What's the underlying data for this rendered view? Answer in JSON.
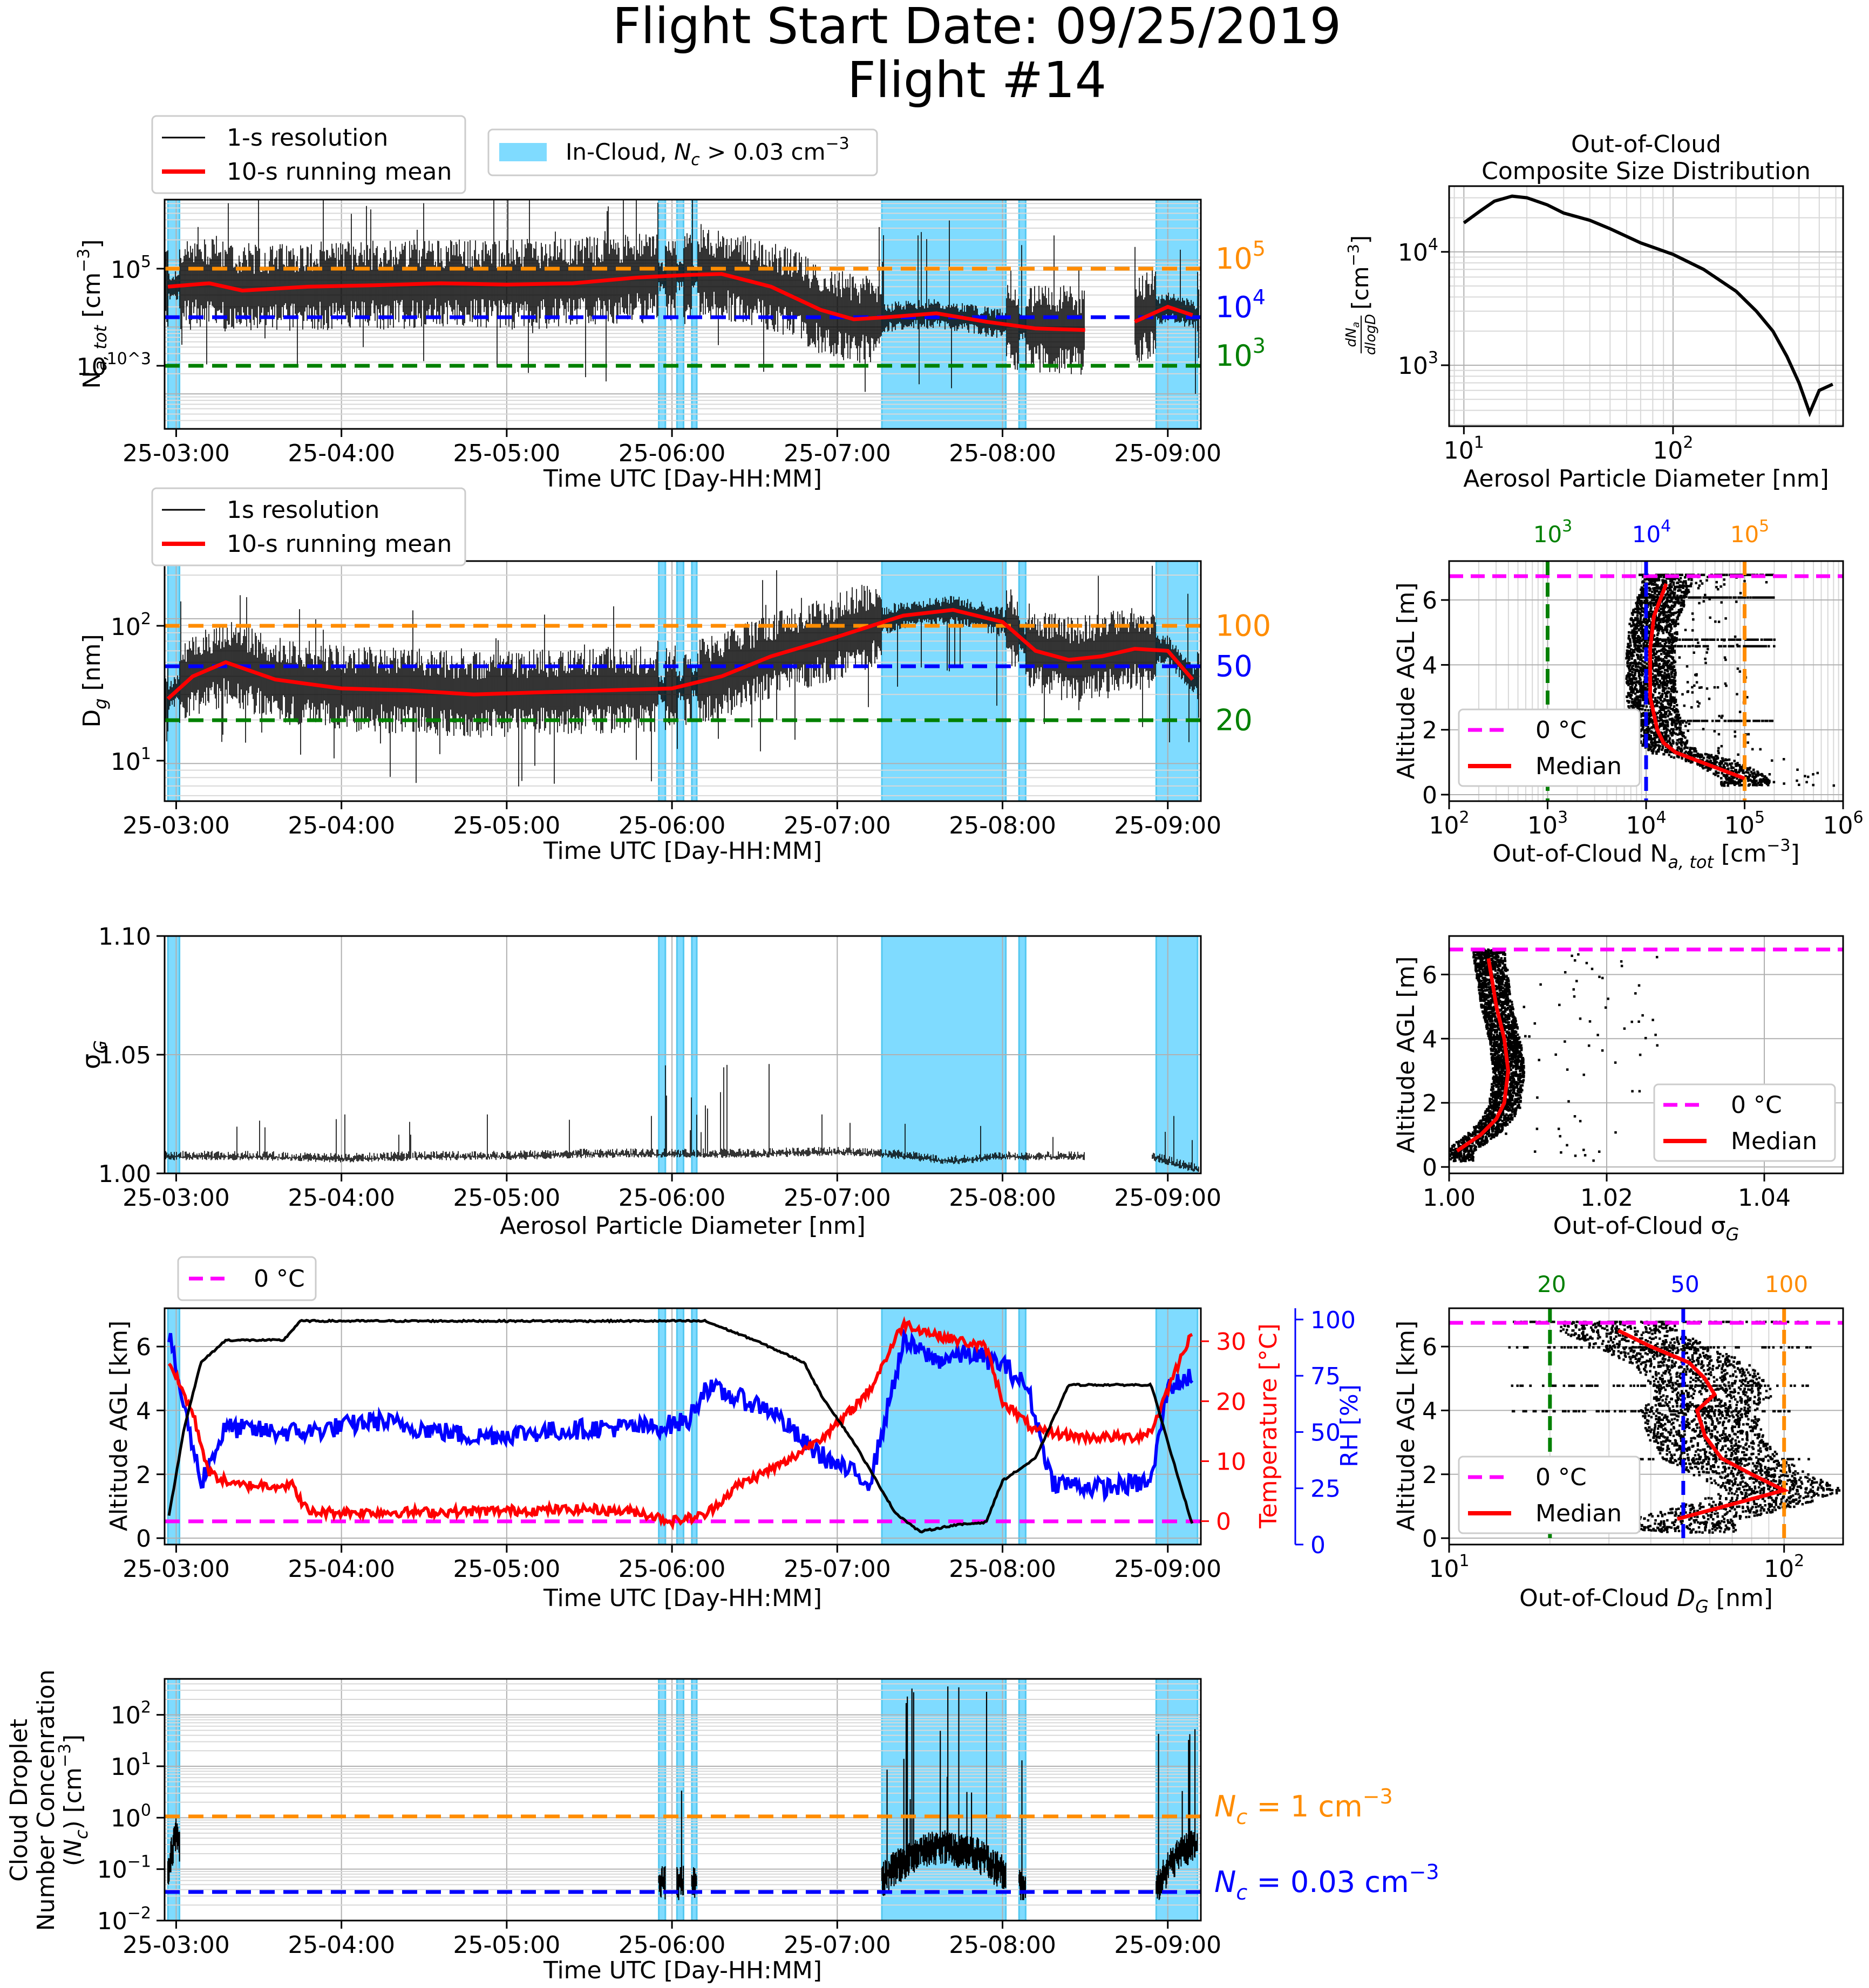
{
  "title": {
    "line1": "Flight Start Date: 09/25/2019",
    "line2": "Flight #14"
  },
  "colors": {
    "cloud": "#7fdbff",
    "cloud_line": "#55c8f0",
    "red": "#ff0000",
    "blue": "#0000ff",
    "green": "#008000",
    "orange": "#ff8c00",
    "magenta": "#ff00ff",
    "black": "#000000"
  },
  "time_ticks": [
    "25-03:00",
    "25-04:00",
    "25-05:00",
    "25-06:00",
    "25-07:00",
    "25-08:00",
    "25-09:00"
  ],
  "cloud_periods": [
    [
      2.95,
      3.02
    ],
    [
      5.92,
      5.96
    ],
    [
      6.03,
      6.07
    ],
    [
      6.12,
      6.15
    ],
    [
      7.27,
      8.02
    ],
    [
      8.1,
      8.14
    ],
    [
      8.93,
      9.18
    ]
  ],
  "panels": {
    "na": {
      "ylabel": "N_a,tot [cm^-3]",
      "xlabel": "Time UTC [Day-HH:MM]",
      "yticks": [
        "10^3",
        "10^5"
      ],
      "legend_left": [
        "1-s resolution",
        "10-s running mean"
      ],
      "legend_cloud": "In-Cloud, N_c > 0.03 cm^-3",
      "ref_labels": [
        "10^5",
        "10^4",
        "10^3"
      ]
    },
    "dg": {
      "ylabel": "D_g [nm]",
      "xlabel": "Time UTC [Day-HH:MM]",
      "yticks": [
        "10^1",
        "10^2"
      ],
      "legend": [
        "1s resolution",
        "10-s running mean"
      ],
      "ref_labels": [
        "100",
        "50",
        "20"
      ]
    },
    "sg": {
      "ylabel": "σ_G",
      "xlabel": "Aerosol Particle Diameter [nm]",
      "yticks": [
        "1.00",
        "1.05",
        "1.10"
      ]
    },
    "alt": {
      "ylabel": "Altitude AGL [km]",
      "ylabel_temp": "Temperature [°C]",
      "ylabel_rh": "RH [%]",
      "xlabel": "Time UTC [Day-HH:MM]",
      "yticks": [
        "0",
        "2",
        "4",
        "6"
      ],
      "temp_ticks": [
        "0",
        "10",
        "20",
        "30"
      ],
      "rh_ticks": [
        "0",
        "25",
        "50",
        "75",
        "100"
      ],
      "legend": "0 °C"
    },
    "nc": {
      "ylabel_lines": [
        "Cloud Droplet",
        "Number Concenration",
        "(N_c) [cm^-3]"
      ],
      "xlabel": "Time UTC [Day-HH:MM]",
      "yticks": [
        "10^-2",
        "10^-1",
        "10^0",
        "10^1",
        "10^2"
      ],
      "ref_labels": [
        "N_c = 1 cm^-3",
        "N_c = 0.03 cm^-3"
      ]
    },
    "psd": {
      "title_lines": [
        "Out-of-Cloud",
        "Composite Size Distribution"
      ],
      "xlabel": "Aerosol Particle Diameter [nm]",
      "ylabel": "dN_a/dlogD [cm^-3]",
      "xticks": [
        "10^1",
        "10^2"
      ],
      "yticks": [
        "10^3",
        "10^4"
      ]
    },
    "prof_na": {
      "ylabel": "Altitude AGL [m]",
      "xlabel": "Out-of-Cloud N_a,tot [cm^-3]",
      "xticks": [
        "10^2",
        "10^3",
        "10^4",
        "10^5",
        "10^6"
      ],
      "yticks": [
        "0",
        "2",
        "4",
        "6"
      ],
      "top_labels": [
        "10^3",
        "10^4",
        "10^5"
      ],
      "legend": [
        "0 °C",
        "Median"
      ]
    },
    "prof_sg": {
      "ylabel": "Altitude AGL [m]",
      "xlabel": "Out-of-Cloud σ_G",
      "xticks": [
        "1.00",
        "1.02",
        "1.04"
      ],
      "yticks": [
        "0",
        "2",
        "4",
        "6"
      ],
      "legend": [
        "0 °C",
        "Median"
      ]
    },
    "prof_dg": {
      "ylabel": "Altitude AGL [km]",
      "xlabel": "Out-of-Cloud D_G [nm]",
      "xticks": [
        "10^1",
        "10^2"
      ],
      "yticks": [
        "0",
        "2",
        "4",
        "6"
      ],
      "top_labels": [
        "20",
        "50",
        "100"
      ],
      "legend": [
        "0 °C",
        "Median"
      ]
    }
  },
  "chart_data": [
    {
      "type": "line",
      "name": "na",
      "xlim": [
        2.93,
        9.2
      ],
      "ylog": true,
      "ylim": [
        300,
        800000
      ],
      "series": [
        {
          "name": "10-s running mean",
          "x": [
            2.95,
            3.2,
            3.4,
            3.8,
            4.2,
            4.6,
            5.0,
            5.4,
            5.8,
            6.1,
            6.3,
            6.6,
            6.9,
            7.1,
            7.3,
            7.6,
            7.9,
            8.2,
            8.5,
            8.6,
            8.8,
            9.0,
            9.15
          ],
          "y": [
            40000,
            45000,
            35000,
            40000,
            42000,
            45000,
            43000,
            45000,
            55000,
            60000,
            62000,
            40000,
            18000,
            13000,
            14000,
            16000,
            12000,
            9500,
            9000,
            null,
            12000,
            20000,
            15000
          ]
        }
      ],
      "reference_lines": [
        {
          "y": 100000,
          "color": "orange"
        },
        {
          "y": 10000,
          "color": "blue"
        },
        {
          "y": 1000,
          "color": "green"
        }
      ]
    },
    {
      "type": "line",
      "name": "dg",
      "xlim": [
        2.93,
        9.2
      ],
      "ylog": true,
      "ylim": [
        5.5,
        250
      ],
      "series": [
        {
          "name": "10-s running mean",
          "x": [
            2.95,
            3.1,
            3.3,
            3.6,
            4.0,
            4.4,
            4.8,
            5.2,
            5.6,
            6.0,
            6.3,
            6.6,
            7.0,
            7.4,
            7.7,
            8.0,
            8.2,
            8.4,
            8.6,
            8.8,
            9.0,
            9.15
          ],
          "y": [
            28,
            40,
            50,
            38,
            33,
            32,
            30,
            31,
            32,
            33,
            40,
            55,
            75,
            105,
            115,
            95,
            60,
            52,
            55,
            62,
            60,
            38
          ]
        }
      ],
      "reference_lines": [
        {
          "y": 100,
          "color": "orange"
        },
        {
          "y": 50,
          "color": "blue"
        },
        {
          "y": 20,
          "color": "green"
        }
      ]
    },
    {
      "type": "line",
      "name": "sigma_g",
      "xlim": [
        2.93,
        9.2
      ],
      "ylim": [
        1.0,
        1.1
      ],
      "series": [
        {
          "name": "σ_G",
          "x": [
            2.95,
            3.5,
            4.0,
            4.5,
            5.0,
            5.5,
            6.0,
            6.5,
            7.0,
            7.3,
            7.7,
            8.0,
            8.5,
            8.6,
            8.9,
            9.15
          ],
          "y": [
            1.007,
            1.007,
            1.006,
            1.007,
            1.007,
            1.008,
            1.008,
            1.008,
            1.009,
            1.008,
            1.005,
            1.007,
            1.007,
            null,
            1.007,
            1.002
          ]
        }
      ]
    },
    {
      "type": "line",
      "name": "altitude_met",
      "xlim": [
        2.93,
        9.2
      ],
      "ylim": [
        -0.2,
        7.2
      ],
      "series": [
        {
          "name": "Altitude",
          "x": [
            2.95,
            3.05,
            3.15,
            3.3,
            3.65,
            3.75,
            4.5,
            5.5,
            6.0,
            6.2,
            6.5,
            6.8,
            6.9,
            7.1,
            7.35,
            7.5,
            7.7,
            7.9,
            8.0,
            8.2,
            8.4,
            8.7,
            8.9,
            9.0,
            9.15
          ],
          "y": [
            0.5,
            3.5,
            5.5,
            6.2,
            6.2,
            6.8,
            6.8,
            6.8,
            6.8,
            6.8,
            6.2,
            5.5,
            4.5,
            3.0,
            0.8,
            0.2,
            0.4,
            0.5,
            1.8,
            2.5,
            4.8,
            4.8,
            4.8,
            3.0,
            0.4
          ]
        },
        {
          "name": "Temperature",
          "axis": "temp",
          "x": [
            2.95,
            3.1,
            3.2,
            3.35,
            3.7,
            3.8,
            4.5,
            5.5,
            5.8,
            6.0,
            6.2,
            6.4,
            6.7,
            7.0,
            7.2,
            7.4,
            7.6,
            7.9,
            8.0,
            8.2,
            8.5,
            8.8,
            8.9,
            9.0,
            9.15
          ],
          "y": [
            27,
            18,
            8,
            6,
            6,
            1.5,
            1.5,
            2,
            1.5,
            0,
            1,
            6,
            10,
            16,
            22,
            33,
            31,
            29,
            20,
            15,
            14,
            14,
            15,
            22,
            32
          ]
        },
        {
          "name": "RH",
          "axis": "rh",
          "x": [
            2.95,
            3.05,
            3.15,
            3.3,
            3.6,
            3.8,
            4.2,
            4.8,
            5.2,
            5.6,
            5.9,
            6.1,
            6.2,
            6.4,
            6.6,
            6.8,
            7.0,
            7.2,
            7.4,
            7.6,
            7.8,
            8.0,
            8.15,
            8.3,
            8.6,
            8.9,
            9.0,
            9.15
          ],
          "y": [
            95,
            60,
            28,
            52,
            50,
            50,
            55,
            48,
            50,
            52,
            52,
            55,
            70,
            65,
            60,
            45,
            35,
            28,
            90,
            82,
            85,
            80,
            70,
            28,
            25,
            28,
            70,
            75
          ]
        },
        {
          "name": "0 °C",
          "y": 0,
          "axis": "temp",
          "style": "dashed"
        }
      ]
    },
    {
      "type": "line",
      "name": "nc",
      "xlim": [
        2.93,
        9.2
      ],
      "ylog": true,
      "ylim": [
        0.01,
        500
      ],
      "series": [
        {
          "name": "N_c",
          "x": [
            2.96,
            3.0,
            3.05,
            7.28,
            7.4,
            7.6,
            7.8,
            7.95,
            8.1,
            8.15,
            8.95,
            9.15
          ],
          "y": [
            0.1,
            0.5,
            0.03,
            0.07,
            0.15,
            0.3,
            0.25,
            0.12,
            0.06,
            0.03,
            0.05,
            0.3
          ]
        }
      ],
      "reference_lines": [
        {
          "y": 1,
          "color": "orange"
        },
        {
          "y": 0.03,
          "color": "blue"
        }
      ]
    },
    {
      "type": "line",
      "name": "psd",
      "xlog": true,
      "ylog": true,
      "xlim": [
        8.5,
        650
      ],
      "ylim": [
        290,
        38000
      ],
      "x": [
        10,
        12,
        14,
        17,
        20,
        25,
        30,
        40,
        50,
        70,
        100,
        140,
        200,
        250,
        300,
        350,
        400,
        450,
        500,
        580
      ],
      "y": [
        18000,
        23000,
        28000,
        31000,
        30000,
        26000,
        22000,
        19000,
        16000,
        12000,
        9500,
        7000,
        4500,
        3000,
        2000,
        1200,
        700,
        380,
        600,
        680
      ]
    },
    {
      "type": "scatter",
      "name": "profile_na",
      "xlog": true,
      "xlim": [
        100,
        1000000
      ],
      "ylim": [
        -0.2,
        7.2
      ],
      "median": {
        "x": [
          100000,
          20000,
          15000,
          13000,
          11000,
          11000,
          12000,
          16000
        ],
        "y": [
          0.5,
          1.3,
          1.6,
          2.0,
          3.0,
          4.5,
          5.5,
          6.5
        ]
      },
      "vertical_lines": [
        {
          "x": 1000,
          "color": "green"
        },
        {
          "x": 10000,
          "color": "blue"
        },
        {
          "x": 100000,
          "color": "orange"
        }
      ],
      "freezing_level": 6.8
    },
    {
      "type": "scatter",
      "name": "profile_sigma_g",
      "xlim": [
        1.0,
        1.05
      ],
      "ylim": [
        -0.2,
        7.2
      ],
      "median": {
        "x": [
          1.001,
          1.004,
          1.006,
          1.007,
          1.0075,
          1.007,
          1.006,
          1.005
        ],
        "y": [
          0.5,
          1.0,
          1.5,
          2.0,
          3.0,
          4.0,
          5.0,
          6.5
        ]
      },
      "freezing_level": 6.8
    },
    {
      "type": "scatter",
      "name": "profile_dg",
      "xlog": true,
      "xlim": [
        10,
        150
      ],
      "ylim": [
        -0.2,
        7.2
      ],
      "median": {
        "x": [
          48,
          100,
          80,
          65,
          58,
          55,
          62,
          58,
          52,
          40,
          32
        ],
        "y": [
          0.6,
          1.5,
          2.0,
          2.5,
          3.2,
          4.0,
          4.5,
          5.0,
          5.5,
          6.0,
          6.5
        ]
      },
      "vertical_lines": [
        {
          "x": 20,
          "color": "green"
        },
        {
          "x": 50,
          "color": "blue"
        },
        {
          "x": 100,
          "color": "orange"
        }
      ],
      "freezing_level": 6.8
    }
  ]
}
